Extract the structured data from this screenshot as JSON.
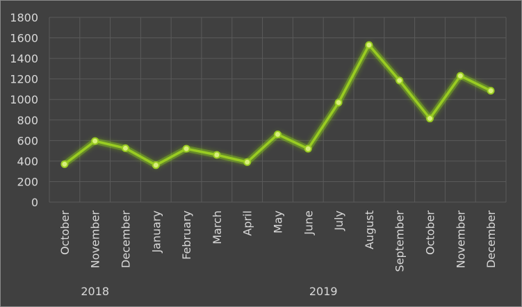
{
  "chart_data": {
    "type": "line",
    "x": [
      "October",
      "November",
      "December",
      "January",
      "February",
      "March",
      "April",
      "May",
      "June",
      "July",
      "August",
      "September",
      "October",
      "November",
      "December"
    ],
    "groups": [
      {
        "label": "2018",
        "categories": [
          "October",
          "November",
          "December"
        ]
      },
      {
        "label": "2019",
        "categories": [
          "January",
          "February",
          "March",
          "April",
          "May",
          "June",
          "July",
          "August",
          "September",
          "October",
          "November",
          "December"
        ]
      }
    ],
    "series": [
      {
        "values": [
          370,
          595,
          525,
          360,
          520,
          460,
          390,
          660,
          520,
          970,
          1530,
          1185,
          815,
          1230,
          1085
        ]
      }
    ],
    "ylim": [
      0,
      1800
    ],
    "yticks": [
      0,
      200,
      400,
      600,
      800,
      1000,
      1200,
      1400,
      1600,
      1800
    ],
    "grid": true,
    "colors": {
      "line": "#99cc22",
      "glow": "#8bd017",
      "background": "#404040",
      "text": "#d9d9d9",
      "grid": "#5a5a5a"
    }
  }
}
